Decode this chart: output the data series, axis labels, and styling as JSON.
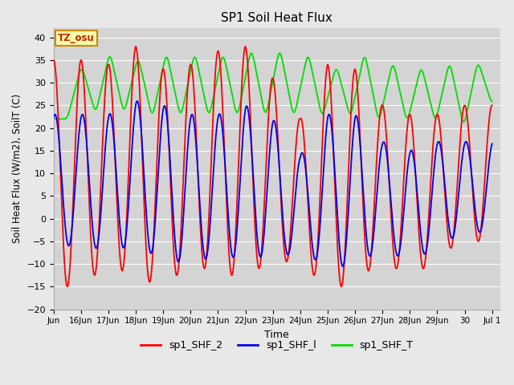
{
  "title": "SP1 Soil Heat Flux",
  "ylabel": "Soil Heat Flux (W/m2), SoilT (C)",
  "xlabel": "Time",
  "ylim": [
    -20,
    42
  ],
  "yticks": [
    -20,
    -15,
    -10,
    -5,
    0,
    5,
    10,
    15,
    20,
    25,
    30,
    35,
    40
  ],
  "bg_color": "#e8e8e8",
  "plot_bg_color": "#d4d4d4",
  "grid_color": "#ffffff",
  "line_colors": {
    "sp1_SHF_2": "#ff0000",
    "sp1_SHF_l": "#0000ee",
    "sp1_SHF_T": "#00dd00"
  },
  "annotation_text": "TZ_osu",
  "annotation_bg": "#ffffaa",
  "annotation_border": "#cc8800",
  "tick_labels": [
    "Jun",
    "16Jun",
    "17Jun",
    "18Jun",
    "19Jun",
    "20Jun",
    "21Jun",
    "22Jun",
    "23Jun",
    "24Jun",
    "25Jun",
    "26Jun",
    "27Jun",
    "28Jun",
    "29Jun",
    "30",
    "Jul 1"
  ],
  "tick_positions": [
    15,
    16,
    17,
    18,
    19,
    20,
    21,
    22,
    23,
    24,
    25,
    26,
    27,
    28,
    29,
    30,
    31
  ],
  "shf2_peaks": [
    35,
    34,
    38,
    33,
    34,
    37,
    38,
    31,
    22,
    34,
    33,
    25,
    23,
    23,
    25
  ],
  "shf2_troughs": [
    -15,
    -10,
    -13,
    -15,
    -10,
    -12,
    -13,
    -9,
    -10,
    -15,
    -15,
    -8,
    -14,
    -8,
    -5
  ],
  "shfl_peaks": [
    23,
    23,
    26,
    25,
    23,
    23,
    25,
    22,
    14,
    23,
    23,
    17,
    15,
    17,
    17
  ],
  "shfl_troughs": [
    -6,
    -7,
    -6,
    -9,
    -10,
    -8,
    -9,
    -8,
    -8,
    -10,
    -11,
    -6,
    -10,
    -6,
    -3
  ],
  "shft_values": [
    22,
    34,
    23,
    37,
    23,
    36,
    22,
    37,
    22,
    37,
    22,
    37,
    22,
    38,
    22,
    38,
    22,
    37,
    22,
    34,
    22,
    37,
    21,
    35,
    21,
    34,
    21,
    35,
    20,
    35,
    25
  ]
}
